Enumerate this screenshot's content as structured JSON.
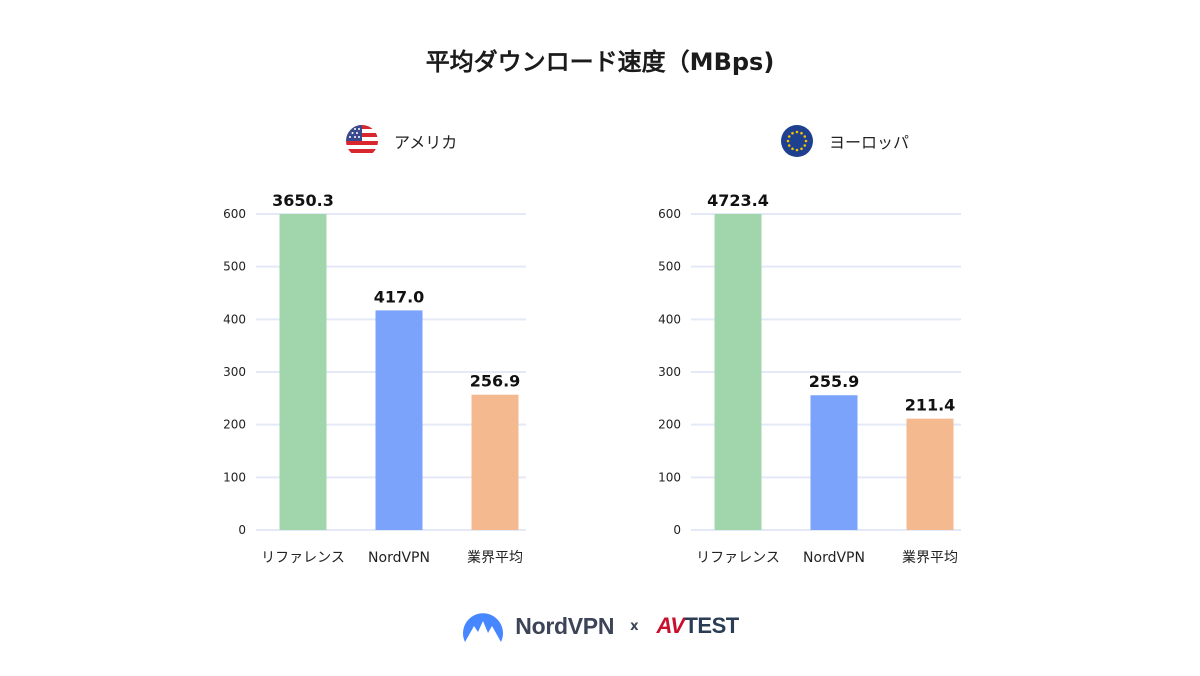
{
  "title": "平均ダウンロード速度（MBps)",
  "colors": {
    "reference": "#a1d6ac",
    "nordvpn": "#7ba3fb",
    "industry": "#f5b990",
    "grid": "#e3e9f6"
  },
  "footer": {
    "brand1": "NordVPN",
    "separator": "x",
    "brand2_mark": "AV",
    "brand2_text": "TEST"
  },
  "chart_data": [
    {
      "type": "bar",
      "region": "アメリカ",
      "flag_icon": "us-flag-icon",
      "categories": [
        "リファレンス",
        "NordVPN",
        "業界平均"
      ],
      "values": [
        3650.3,
        417.0,
        256.9
      ],
      "value_labels": [
        "3650.3",
        "417.0",
        "256.9"
      ],
      "ylim": [
        0,
        600
      ],
      "yticks": [
        "0",
        "100",
        "200",
        "300",
        "400",
        "500",
        "600"
      ],
      "grid": true
    },
    {
      "type": "bar",
      "region": "ヨーロッパ",
      "flag_icon": "eu-flag-icon",
      "categories": [
        "リファレンス",
        "NordVPN",
        "業界平均"
      ],
      "values": [
        4723.4,
        255.9,
        211.4
      ],
      "value_labels": [
        "4723.4",
        "255.9",
        "211.4"
      ],
      "ylim": [
        0,
        600
      ],
      "yticks": [
        "0",
        "100",
        "200",
        "300",
        "400",
        "500",
        "600"
      ],
      "grid": true
    }
  ]
}
